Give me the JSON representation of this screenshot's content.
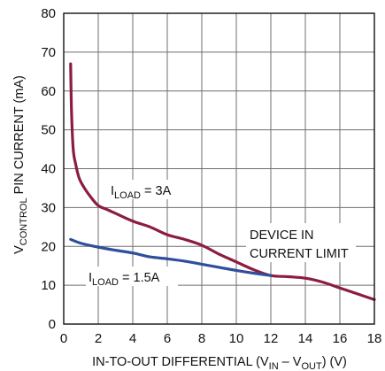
{
  "chart_data": {
    "type": "line",
    "xlim": [
      0,
      18
    ],
    "ylim": [
      0,
      80
    ],
    "x_ticks": [
      "0",
      "2",
      "4",
      "6",
      "8",
      "10",
      "12",
      "14",
      "16",
      "18"
    ],
    "y_ticks": [
      "0",
      "10",
      "20",
      "30",
      "40",
      "50",
      "60",
      "70",
      "80"
    ],
    "grid": true,
    "xlabel": {
      "pre": "IN-TO-OUT DIFFERENTIAL (V",
      "sub1": "IN",
      "mid": " – V",
      "sub2": "OUT",
      "post": ") (V)"
    },
    "ylabel": {
      "pre": "V",
      "sub": "CONTROL",
      "post": " PIN CURRENT (mA)"
    },
    "series": [
      {
        "label": {
          "pre": "I",
          "sub": "LOAD",
          "post": " = 3A"
        },
        "color": "#8c1d3f",
        "x": [
          0.4,
          0.45,
          0.55,
          0.7,
          0.9,
          1.2,
          1.6,
          2.0,
          2.5,
          3.0,
          4.0,
          5.0,
          6.0,
          7.0,
          8.0,
          9.0,
          10.0,
          11.0,
          12.0,
          13.0,
          14.0,
          15.0,
          16.0,
          17.0,
          18.0
        ],
        "y": [
          67,
          55,
          45,
          41,
          37.5,
          35,
          32.5,
          30.5,
          29.5,
          28.5,
          26.5,
          25,
          23,
          21.8,
          20.3,
          18,
          16,
          14,
          12.5,
          12.2,
          11.8,
          10.8,
          9.3,
          7.8,
          6.3
        ]
      },
      {
        "label": {
          "pre": "I",
          "sub": "LOAD",
          "post": " = 1.5A"
        },
        "color": "#2f4f9b",
        "x": [
          0.4,
          1.0,
          2.0,
          3.0,
          4.0,
          5.0,
          6.0,
          7.0,
          8.0,
          9.0,
          10.0,
          11.0,
          12.0
        ],
        "y": [
          21.8,
          20.8,
          19.8,
          19.0,
          18.3,
          17.3,
          16.8,
          16.2,
          15.4,
          14.6,
          13.8,
          13.1,
          12.5
        ]
      }
    ],
    "annotations": [
      {
        "line1": "DEVICE IN",
        "line2": "CURRENT LIMIT"
      }
    ]
  }
}
